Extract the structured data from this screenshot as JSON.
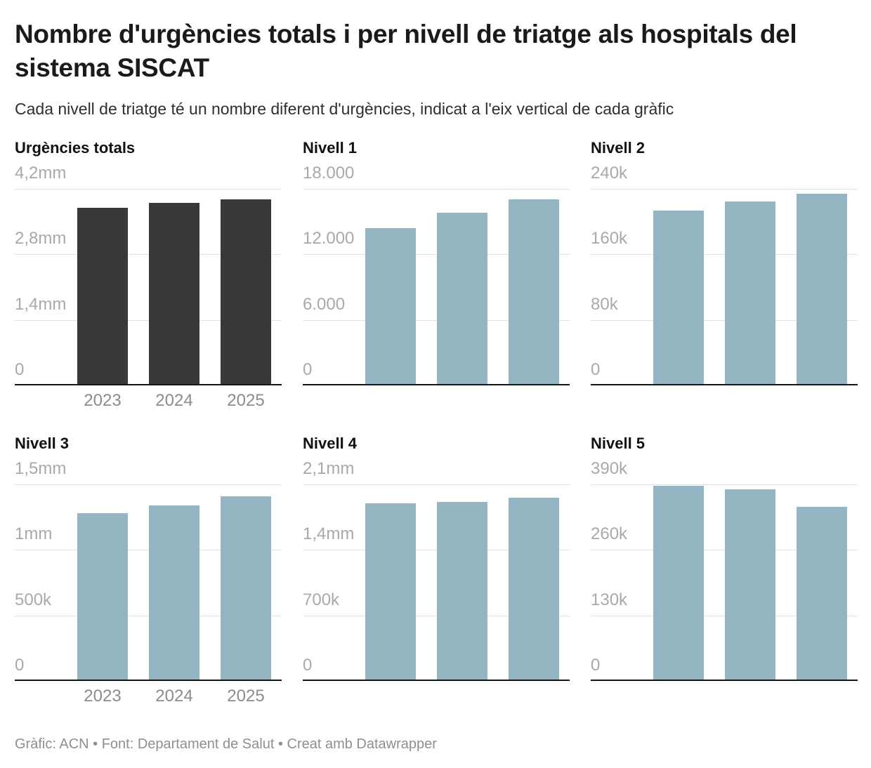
{
  "header": {
    "title": "Nombre d'urgències totals i per nivell de triatge als hospitals del sistema SISCAT",
    "subtitle": "Cada nivell de triatge té un nombre diferent d'urgències, indicat a l'eix vertical de cada gràfic"
  },
  "footer": {
    "text": "Gràfic: ACN • Font: Departament de Salut • Creat amb Datawrapper"
  },
  "colors": {
    "total_bar": "#383838",
    "level_bar": "#94b5c2",
    "gridline": "#e2e2e2",
    "axis_line": "#161616",
    "tick_label": "#a9a9a9",
    "year_label": "#8c8c8c"
  },
  "chart_data": [
    {
      "type": "bar",
      "title": "Urgències totals",
      "categories": [
        "2023",
        "2024",
        "2025"
      ],
      "values": [
        3760000,
        3870000,
        3940000
      ],
      "ymax": 4200000,
      "ylim": [
        0,
        4200000
      ],
      "yticks": [
        "4,2mm",
        "2,8mm",
        "1,4mm",
        "0"
      ],
      "grid": true,
      "show_x_labels": true,
      "bar_color": "#383838"
    },
    {
      "type": "bar",
      "title": "Nivell 1",
      "categories": [
        "2023",
        "2024",
        "2025"
      ],
      "values": [
        14300,
        15700,
        16900
      ],
      "ymax": 18000,
      "ylim": [
        0,
        18000
      ],
      "yticks": [
        "18.000",
        "12.000",
        "6.000",
        "0"
      ],
      "grid": true,
      "show_x_labels": false,
      "bar_color": "#94b5c2"
    },
    {
      "type": "bar",
      "title": "Nivell 2",
      "categories": [
        "2023",
        "2024",
        "2025"
      ],
      "values": [
        212000,
        223000,
        232000
      ],
      "ymax": 240000,
      "ylim": [
        0,
        240000
      ],
      "yticks": [
        "240k",
        "160k",
        "80k",
        "0"
      ],
      "grid": true,
      "show_x_labels": false,
      "bar_color": "#94b5c2"
    },
    {
      "type": "bar",
      "title": "Nivell 3",
      "categories": [
        "2023",
        "2024",
        "2025"
      ],
      "values": [
        1270000,
        1330000,
        1400000
      ],
      "ymax": 1500000,
      "ylim": [
        0,
        1500000
      ],
      "yticks": [
        "1,5mm",
        "1mm",
        "500k",
        "0"
      ],
      "grid": true,
      "show_x_labels": true,
      "bar_color": "#94b5c2"
    },
    {
      "type": "bar",
      "title": "Nivell 4",
      "categories": [
        "2023",
        "2024",
        "2025"
      ],
      "values": [
        1880000,
        1900000,
        1940000
      ],
      "ymax": 2100000,
      "ylim": [
        0,
        2100000
      ],
      "yticks": [
        "2,1mm",
        "1,4mm",
        "700k",
        "0"
      ],
      "grid": true,
      "show_x_labels": false,
      "bar_color": "#94b5c2"
    },
    {
      "type": "bar",
      "title": "Nivell 5",
      "categories": [
        "2023",
        "2024",
        "2025"
      ],
      "values": [
        385000,
        378000,
        342000
      ],
      "ymax": 390000,
      "ylim": [
        0,
        390000
      ],
      "yticks": [
        "390k",
        "260k",
        "130k",
        "0"
      ],
      "grid": true,
      "show_x_labels": false,
      "bar_color": "#94b5c2"
    }
  ]
}
